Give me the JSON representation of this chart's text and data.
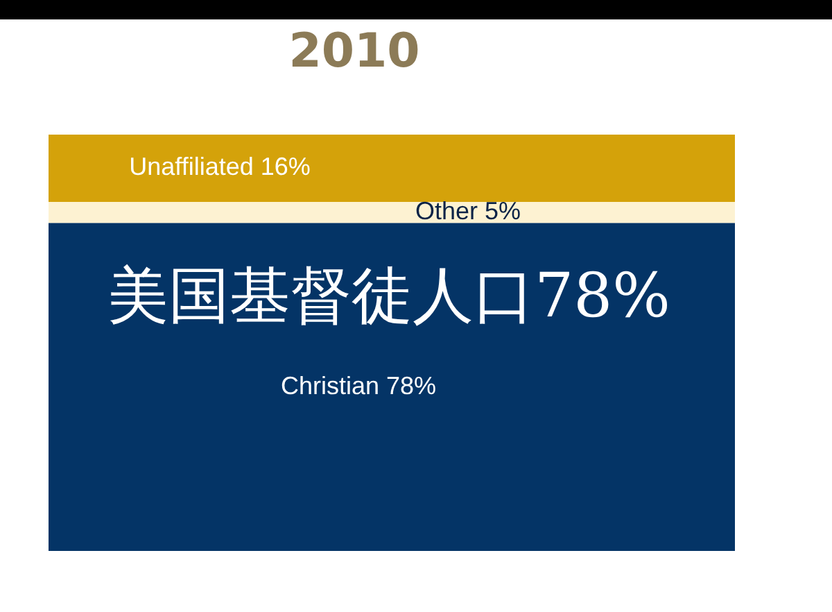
{
  "chart_data": {
    "type": "bar",
    "stacked": true,
    "title": "2010",
    "categories": [
      null
    ],
    "tick_labels": false,
    "series": [
      {
        "color": "#043466",
        "values": [
          78
        ],
        "value_labels": [
          "Christian 78%"
        ]
      },
      {
        "color": "#fdf2d2",
        "values": [
          5
        ],
        "value_labels": [
          "Other 5%"
        ]
      },
      {
        "color": "#d4a20a",
        "values": [
          16
        ],
        "value_labels": [
          "Unaffiliated 16%"
        ]
      }
    ],
    "annotations": [
      "美国基督徒人口78%"
    ]
  }
}
